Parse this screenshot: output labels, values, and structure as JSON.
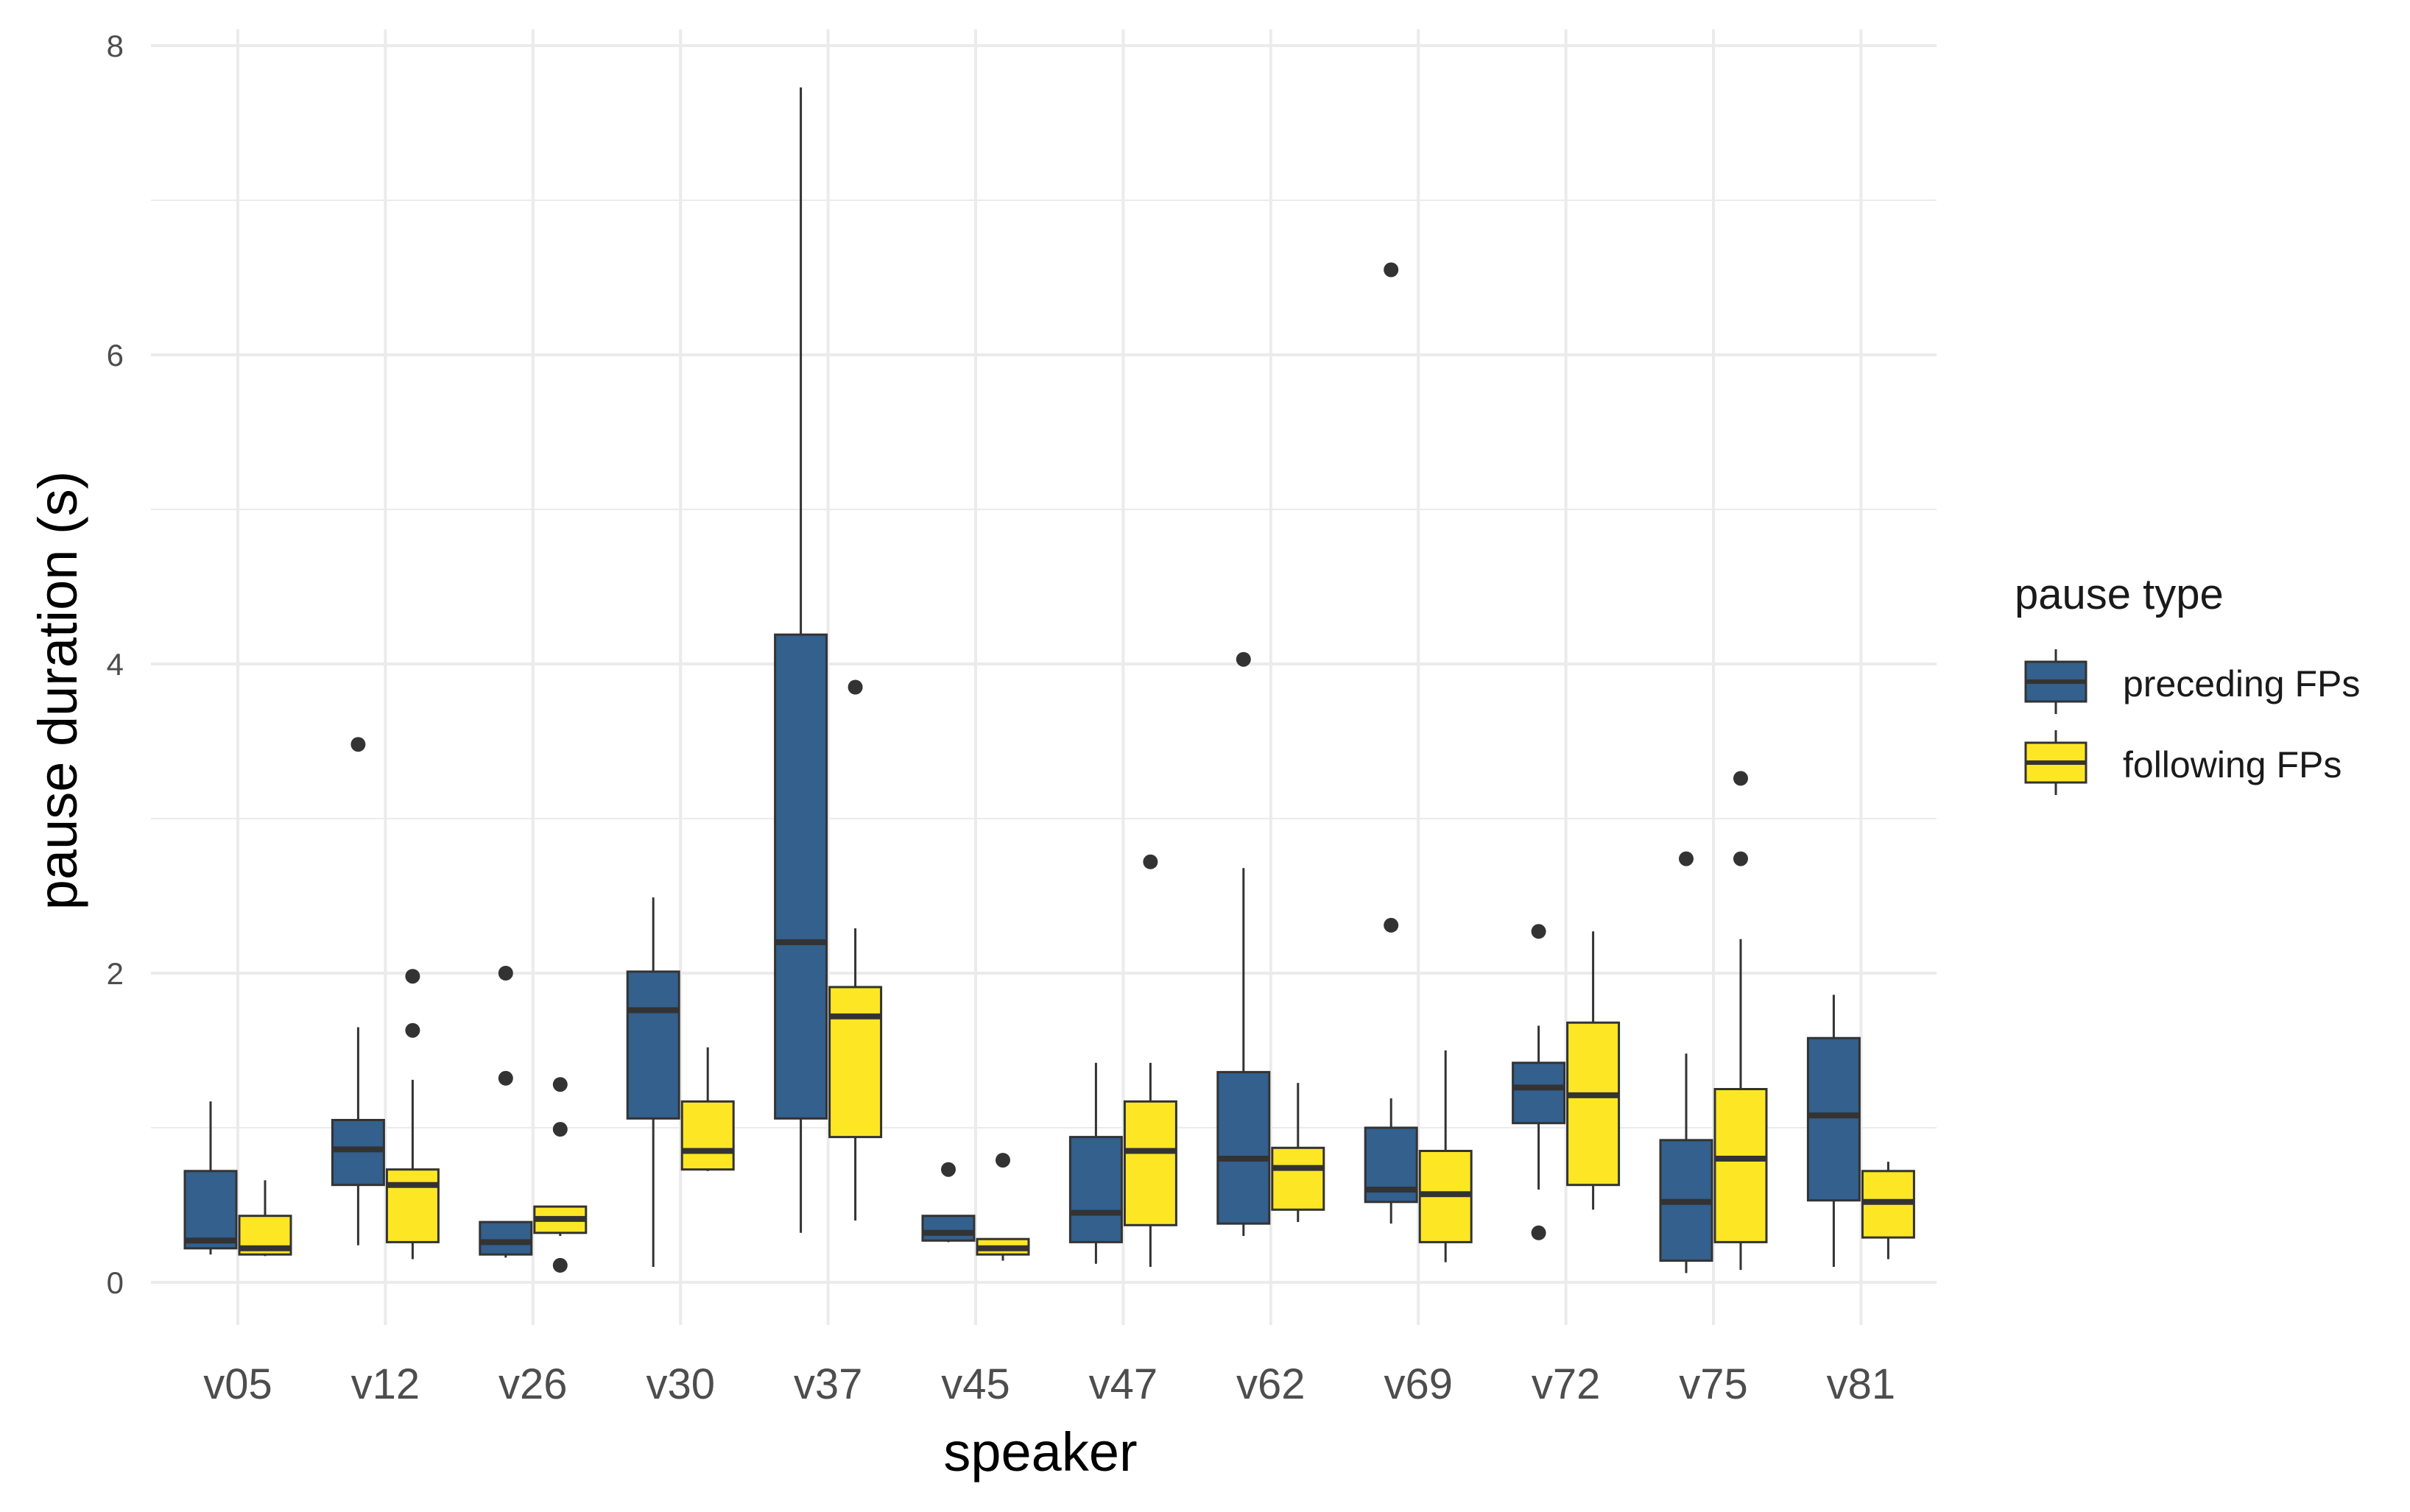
{
  "chart_data": {
    "type": "boxplot",
    "xlabel": "speaker",
    "ylabel": "pause duration (s)",
    "ylim": [
      -0.2,
      8.1
    ],
    "yticks": [
      0,
      2,
      4,
      6,
      8
    ],
    "grid": true,
    "categories": [
      "v05",
      "v12",
      "v26",
      "v30",
      "v37",
      "v45",
      "v47",
      "v62",
      "v69",
      "v72",
      "v75",
      "v81"
    ],
    "legend": {
      "title": "pause type",
      "position": "right",
      "entries": [
        "preceding FPs",
        "following FPs"
      ]
    },
    "colors": {
      "preceding FPs": "#33608d",
      "following FPs": "#fde725",
      "stroke": "#333333",
      "grid": "#ebebeb"
    },
    "series": [
      {
        "name": "preceding FPs",
        "boxes": [
          {
            "category": "v05",
            "min": 0.18,
            "q1": 0.22,
            "median": 0.27,
            "q3": 0.72,
            "max": 1.17,
            "outliers": []
          },
          {
            "category": "v12",
            "min": 0.24,
            "q1": 0.63,
            "median": 0.86,
            "q3": 1.05,
            "max": 1.65,
            "outliers": [
              3.48
            ]
          },
          {
            "category": "v26",
            "min": 0.16,
            "q1": 0.18,
            "median": 0.26,
            "q3": 0.39,
            "max": 0.39,
            "outliers": [
              2.0,
              1.32
            ]
          },
          {
            "category": "v30",
            "min": 0.1,
            "q1": 1.06,
            "median": 1.76,
            "q3": 2.01,
            "max": 2.49,
            "outliers": []
          },
          {
            "category": "v37",
            "min": 0.32,
            "q1": 1.06,
            "median": 2.2,
            "q3": 4.19,
            "max": 7.73,
            "outliers": []
          },
          {
            "category": "v45",
            "min": 0.26,
            "q1": 0.27,
            "median": 0.32,
            "q3": 0.43,
            "max": 0.43,
            "outliers": [
              0.73
            ]
          },
          {
            "category": "v47",
            "min": 0.12,
            "q1": 0.26,
            "median": 0.45,
            "q3": 0.94,
            "max": 1.42,
            "outliers": []
          },
          {
            "category": "v62",
            "min": 0.3,
            "q1": 0.38,
            "median": 0.8,
            "q3": 1.36,
            "max": 2.68,
            "outliers": [
              4.03
            ]
          },
          {
            "category": "v69",
            "min": 0.38,
            "q1": 0.52,
            "median": 0.6,
            "q3": 1.0,
            "max": 1.19,
            "outliers": [
              6.55,
              2.31
            ]
          },
          {
            "category": "v72",
            "min": 0.6,
            "q1": 1.03,
            "median": 1.26,
            "q3": 1.42,
            "max": 1.66,
            "outliers": [
              2.27,
              0.32
            ]
          },
          {
            "category": "v75",
            "min": 0.06,
            "q1": 0.14,
            "median": 0.52,
            "q3": 0.92,
            "max": 1.48,
            "outliers": [
              2.74
            ]
          },
          {
            "category": "v81",
            "min": 0.1,
            "q1": 0.53,
            "median": 1.08,
            "q3": 1.58,
            "max": 1.86,
            "outliers": []
          }
        ]
      },
      {
        "name": "following FPs",
        "boxes": [
          {
            "category": "v05",
            "min": 0.17,
            "q1": 0.18,
            "median": 0.22,
            "q3": 0.43,
            "max": 0.66,
            "outliers": []
          },
          {
            "category": "v12",
            "min": 0.15,
            "q1": 0.26,
            "median": 0.63,
            "q3": 0.73,
            "max": 1.31,
            "outliers": [
              1.98,
              1.63
            ]
          },
          {
            "category": "v26",
            "min": 0.3,
            "q1": 0.32,
            "median": 0.41,
            "q3": 0.49,
            "max": 0.49,
            "outliers": [
              1.28,
              0.99,
              0.11
            ]
          },
          {
            "category": "v30",
            "min": 0.72,
            "q1": 0.73,
            "median": 0.85,
            "q3": 1.17,
            "max": 1.52,
            "outliers": []
          },
          {
            "category": "v37",
            "min": 0.4,
            "q1": 0.94,
            "median": 1.72,
            "q3": 1.91,
            "max": 2.29,
            "outliers": [
              3.85
            ]
          },
          {
            "category": "v45",
            "min": 0.14,
            "q1": 0.18,
            "median": 0.22,
            "q3": 0.28,
            "max": 0.28,
            "outliers": [
              0.79
            ]
          },
          {
            "category": "v47",
            "min": 0.1,
            "q1": 0.37,
            "median": 0.85,
            "q3": 1.17,
            "max": 1.42,
            "outliers": [
              2.72
            ]
          },
          {
            "category": "v62",
            "min": 0.39,
            "q1": 0.47,
            "median": 0.74,
            "q3": 0.87,
            "max": 1.29,
            "outliers": []
          },
          {
            "category": "v69",
            "min": 0.13,
            "q1": 0.26,
            "median": 0.57,
            "q3": 0.85,
            "max": 1.5,
            "outliers": []
          },
          {
            "category": "v72",
            "min": 0.47,
            "q1": 0.63,
            "median": 1.21,
            "q3": 1.68,
            "max": 2.27,
            "outliers": []
          },
          {
            "category": "v75",
            "min": 0.08,
            "q1": 0.26,
            "median": 0.8,
            "q3": 1.25,
            "max": 2.22,
            "outliers": [
              3.26,
              2.74
            ]
          },
          {
            "category": "v81",
            "min": 0.15,
            "q1": 0.29,
            "median": 0.52,
            "q3": 0.72,
            "max": 0.78,
            "outliers": []
          }
        ]
      }
    ]
  }
}
